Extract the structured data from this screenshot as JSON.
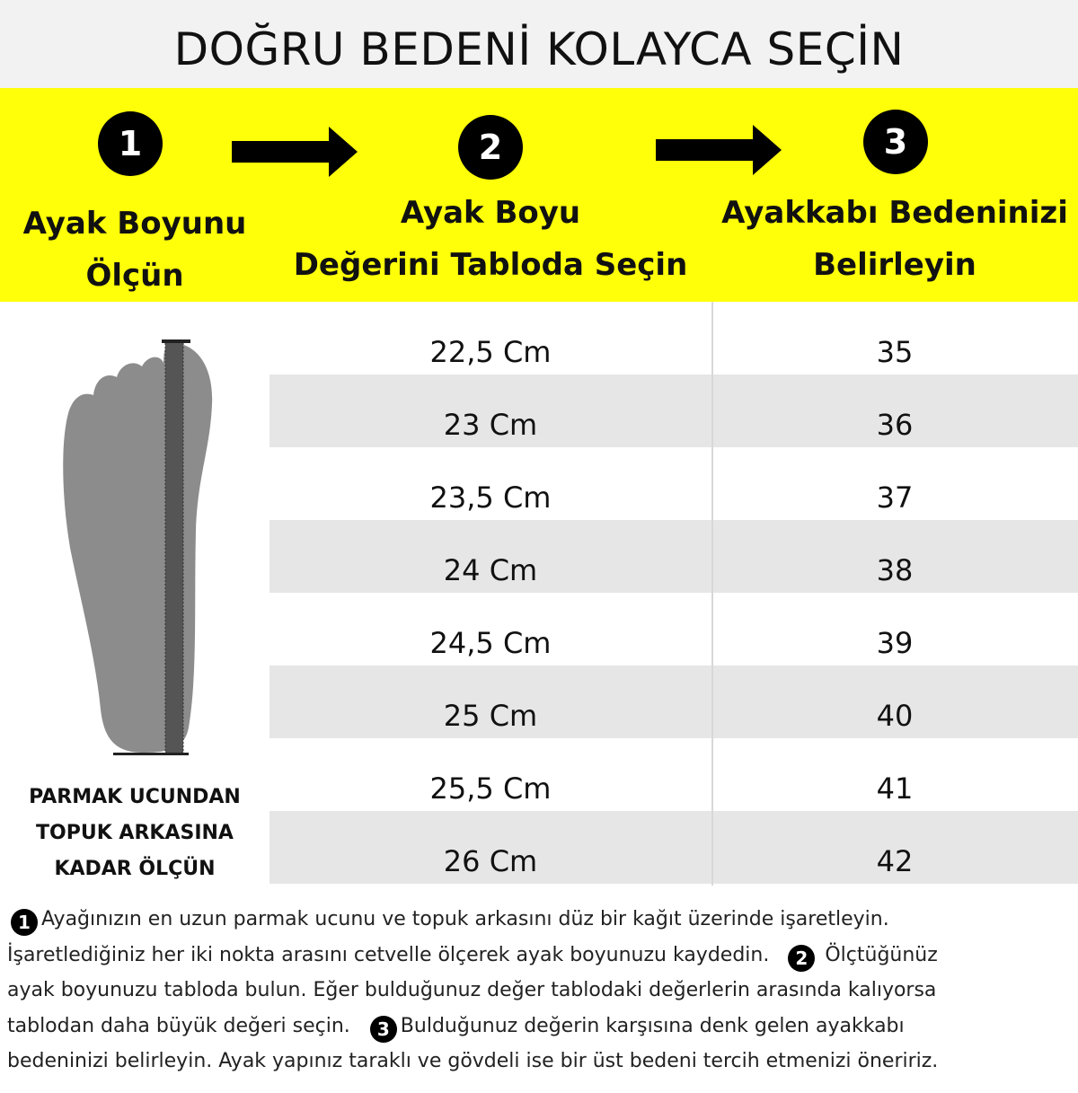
{
  "title": "DOĞRU BEDENİ KOLAYCA SEÇİN",
  "colors": {
    "band": "#ffff0a",
    "row_alt": "#e6e6e6",
    "foot": "#8c8c8c"
  },
  "steps": [
    {
      "number": "1",
      "label_lines": [
        "Ayak Boyunu",
        "Ölçün"
      ]
    },
    {
      "number": "2",
      "label_lines": [
        "Ayak Boyu",
        "Değerini Tabloda Seçin"
      ]
    },
    {
      "number": "3",
      "label_lines": [
        "Ayakkabı Bedeninizi",
        "Belirleyin"
      ]
    }
  ],
  "arrows": [
    "arrow-right-icon",
    "arrow-right-icon"
  ],
  "size_table": {
    "rows": [
      {
        "foot_length": "22,5 Cm",
        "size": "35"
      },
      {
        "foot_length": "23 Cm",
        "size": "36"
      },
      {
        "foot_length": "23,5 Cm",
        "size": "37"
      },
      {
        "foot_length": "24 Cm",
        "size": "38"
      },
      {
        "foot_length": "24,5 Cm",
        "size": "39"
      },
      {
        "foot_length": "25 Cm",
        "size": "40"
      },
      {
        "foot_length": "25,5 Cm",
        "size": "41"
      },
      {
        "foot_length": "26 Cm",
        "size": "42"
      }
    ]
  },
  "foot_caption": [
    "PARMAK UCUNDAN",
    "TOPUK ARKASINA",
    "KADAR ÖLÇÜN"
  ],
  "instructions": {
    "badge1": "1",
    "line1": "Ayağınızın en uzun parmak ucunu ve topuk arkasını düz bir kağıt üzerinde işaretleyin.",
    "line2": "İşaretlediğiniz her iki nokta arasını cetvelle ölçerek ayak boyunuzu kaydedin.",
    "badge2": "2",
    "line2b": "Ölçtüğünüz",
    "line3": "ayak boyunuzu tabloda bulun. Eğer bulduğunuz değer tablodaki değerlerin arasında kalıyorsa",
    "line4": "tablodan daha büyük değeri seçin.",
    "badge3": "3",
    "line4b": "Bulduğunuz değerin karşısına denk gelen ayakkabı",
    "line5": "bedeninizi belirleyin. Ayak yapınız taraklı ve gövdeli ise bir üst bedeni tercih etmenizi öneririz."
  }
}
